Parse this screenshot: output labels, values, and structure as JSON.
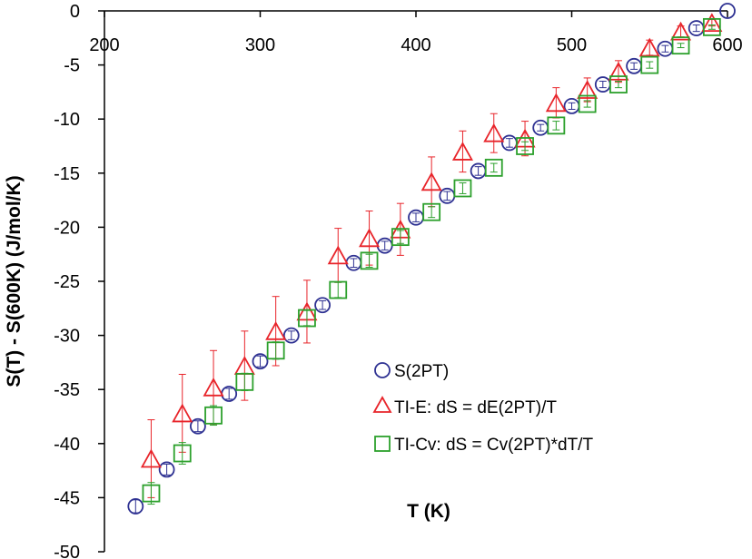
{
  "chart_data": {
    "type": "scatter",
    "xlabel": "T (K)",
    "ylabel": "S(T) - S(600K) (J/mol/K)",
    "xlim": [
      200,
      600
    ],
    "ylim": [
      -50,
      0
    ],
    "x_ticks": [
      200,
      300,
      400,
      500,
      600
    ],
    "y_ticks": [
      0,
      -5,
      -10,
      -15,
      -20,
      -25,
      -30,
      -35,
      -40,
      -45,
      -50
    ],
    "x_tick_labels": [
      "200",
      "300",
      "400",
      "500",
      "600"
    ],
    "y_tick_labels": [
      "0",
      "-5",
      "-10",
      "-15",
      "-20",
      "-25",
      "-30",
      "-35",
      "-40",
      "-45",
      "-50"
    ],
    "legend_position": "lower-right",
    "series": [
      {
        "name": "S(2PT)",
        "marker": "circle",
        "color": "#2e3192",
        "points": [
          {
            "x": 220,
            "y": -45.8,
            "err": 0.6
          },
          {
            "x": 240,
            "y": -42.4,
            "err": 0.5
          },
          {
            "x": 260,
            "y": -38.4,
            "err": 0.5
          },
          {
            "x": 280,
            "y": -35.4,
            "err": 0.5
          },
          {
            "x": 300,
            "y": -32.4,
            "err": 0.5
          },
          {
            "x": 320,
            "y": -30.0,
            "err": 0.4
          },
          {
            "x": 340,
            "y": -27.2,
            "err": 0.4
          },
          {
            "x": 360,
            "y": -23.3,
            "err": 0.4
          },
          {
            "x": 380,
            "y": -21.7,
            "err": 0.4
          },
          {
            "x": 400,
            "y": -19.1,
            "err": 0.4
          },
          {
            "x": 420,
            "y": -17.1,
            "err": 0.4
          },
          {
            "x": 440,
            "y": -14.8,
            "err": 0.4
          },
          {
            "x": 460,
            "y": -12.2,
            "err": 0.4
          },
          {
            "x": 480,
            "y": -10.8,
            "err": 0.3
          },
          {
            "x": 500,
            "y": -8.8,
            "err": 0.3
          },
          {
            "x": 520,
            "y": -6.8,
            "err": 0.3
          },
          {
            "x": 540,
            "y": -5.1,
            "err": 0.3
          },
          {
            "x": 560,
            "y": -3.5,
            "err": 0.3
          },
          {
            "x": 580,
            "y": -1.6,
            "err": 0.3
          },
          {
            "x": 600,
            "y": 0.0,
            "err": 0.0
          }
        ]
      },
      {
        "name": "TI-E: dS = dE(2PT)/T",
        "marker": "triangle",
        "color": "#e8242a",
        "points": [
          {
            "x": 230,
            "y": -41.4,
            "err": 3.6
          },
          {
            "x": 250,
            "y": -37.2,
            "err": 3.6
          },
          {
            "x": 270,
            "y": -34.8,
            "err": 3.4
          },
          {
            "x": 290,
            "y": -32.8,
            "err": 3.2
          },
          {
            "x": 310,
            "y": -29.6,
            "err": 3.2
          },
          {
            "x": 330,
            "y": -27.8,
            "err": 2.9
          },
          {
            "x": 350,
            "y": -22.6,
            "err": 2.5
          },
          {
            "x": 370,
            "y": -21.0,
            "err": 2.5
          },
          {
            "x": 390,
            "y": -20.2,
            "err": 2.4
          },
          {
            "x": 410,
            "y": -15.8,
            "err": 2.3
          },
          {
            "x": 430,
            "y": -13.0,
            "err": 1.9
          },
          {
            "x": 450,
            "y": -11.3,
            "err": 1.8
          },
          {
            "x": 470,
            "y": -11.8,
            "err": 1.6
          },
          {
            "x": 490,
            "y": -8.5,
            "err": 1.4
          },
          {
            "x": 510,
            "y": -7.3,
            "err": 1.1
          },
          {
            "x": 530,
            "y": -5.6,
            "err": 1.0
          },
          {
            "x": 550,
            "y": -3.4,
            "err": 0.7
          },
          {
            "x": 570,
            "y": -1.9,
            "err": 0.5
          },
          {
            "x": 590,
            "y": -1.1,
            "err": 0.3
          }
        ]
      },
      {
        "name": "TI-Cv: dS = Cv(2PT)*dT/T",
        "marker": "square",
        "color": "#2ca02c",
        "points": [
          {
            "x": 230,
            "y": -44.6,
            "err": 1.0
          },
          {
            "x": 250,
            "y": -40.9,
            "err": 1.0
          },
          {
            "x": 270,
            "y": -37.4,
            "err": 0.9
          },
          {
            "x": 290,
            "y": -34.3,
            "err": 0.8
          },
          {
            "x": 310,
            "y": -31.4,
            "err": 0.8
          },
          {
            "x": 330,
            "y": -28.4,
            "err": 0.7
          },
          {
            "x": 350,
            "y": -25.8,
            "err": 0.7
          },
          {
            "x": 370,
            "y": -23.1,
            "err": 0.6
          },
          {
            "x": 390,
            "y": -20.9,
            "err": 0.6
          },
          {
            "x": 410,
            "y": -18.6,
            "err": 0.5
          },
          {
            "x": 430,
            "y": -16.4,
            "err": 0.5
          },
          {
            "x": 450,
            "y": -14.5,
            "err": 0.4
          },
          {
            "x": 470,
            "y": -12.5,
            "err": 0.4
          },
          {
            "x": 490,
            "y": -10.6,
            "err": 0.4
          },
          {
            "x": 510,
            "y": -8.6,
            "err": 0.3
          },
          {
            "x": 530,
            "y": -6.8,
            "err": 0.3
          },
          {
            "x": 550,
            "y": -5.0,
            "err": 0.3
          },
          {
            "x": 570,
            "y": -3.2,
            "err": 0.2
          },
          {
            "x": 590,
            "y": -1.5,
            "err": 0.2
          }
        ]
      }
    ]
  }
}
